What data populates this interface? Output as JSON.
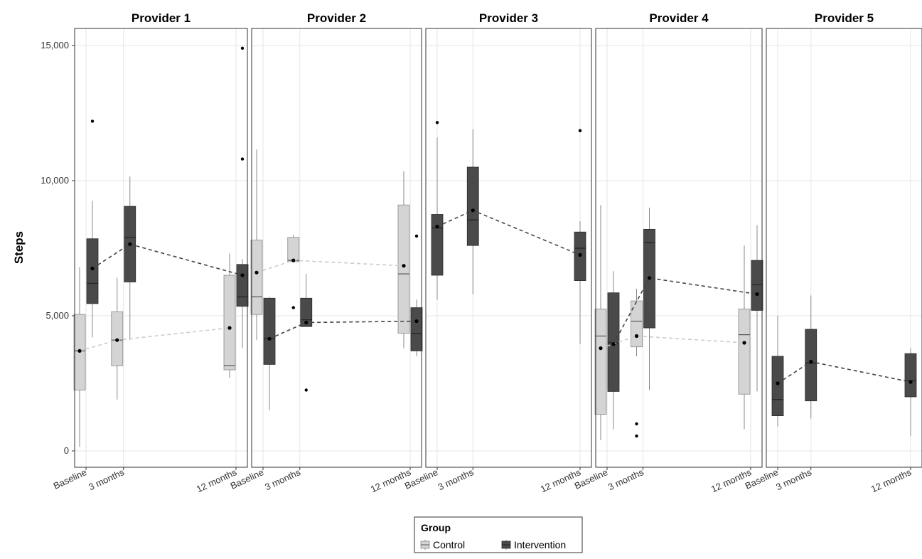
{
  "chart_data": {
    "type": "box",
    "ylabel": "Steps",
    "y_ticks": [
      "0",
      "5,000",
      "10,000",
      "15,000"
    ],
    "y_tick_values": [
      0,
      5000,
      10000,
      15000
    ],
    "ylim": [
      -500,
      15700
    ],
    "x_categories": [
      "Baseline",
      "3 months",
      "12 months"
    ],
    "x_positions": [
      0,
      3,
      12
    ],
    "legend": {
      "title": "Group",
      "position": "bottom",
      "entries": [
        {
          "name": "Control",
          "color": "#d4d4d4"
        },
        {
          "name": "Intervention",
          "color": "#4a4a4a"
        }
      ]
    },
    "colors": {
      "control": "#d4d4d4",
      "intervention": "#4a4a4a",
      "control_line": "#cccccc",
      "intervention_line": "#444444"
    },
    "panels": [
      {
        "title": "Provider 1",
        "boxes": [
          {
            "group": "Control",
            "time": "Baseline",
            "q1": 2250,
            "median": 3700,
            "q3": 5050,
            "whisker_low": 150,
            "whisker_high": 6800,
            "mean": 3700,
            "outliers": []
          },
          {
            "group": "Intervention",
            "time": "Baseline",
            "q1": 5450,
            "median": 6200,
            "q3": 7850,
            "whisker_low": 4200,
            "whisker_high": 9250,
            "mean": 6750,
            "outliers": [
              12200
            ]
          },
          {
            "group": "Control",
            "time": "3 months",
            "q1": 3150,
            "median": 4100,
            "q3": 5150,
            "whisker_low": 1900,
            "whisker_high": 6400,
            "mean": 4100,
            "outliers": []
          },
          {
            "group": "Intervention",
            "time": "3 months",
            "q1": 6250,
            "median": 7900,
            "q3": 9050,
            "whisker_low": 4100,
            "whisker_high": 10150,
            "mean": 7650,
            "outliers": []
          },
          {
            "group": "Control",
            "time": "12 months",
            "q1": 3000,
            "median": 3150,
            "q3": 6500,
            "whisker_low": 2700,
            "whisker_high": 7300,
            "mean": 4550,
            "outliers": []
          },
          {
            "group": "Intervention",
            "time": "12 months",
            "q1": 5350,
            "median": 5700,
            "q3": 6900,
            "whisker_low": 3800,
            "whisker_high": 7100,
            "mean": 6500,
            "outliers": [
              10800,
              14900
            ]
          }
        ],
        "control_means": [
          3700,
          4100,
          4550
        ],
        "intervention_means": [
          6750,
          7650,
          6500
        ]
      },
      {
        "title": "Provider 2",
        "boxes": [
          {
            "group": "Control",
            "time": "Baseline",
            "q1": 5050,
            "median": 5700,
            "q3": 7800,
            "whisker_low": 4100,
            "whisker_high": 11150,
            "mean": 6600,
            "outliers": []
          },
          {
            "group": "Intervention",
            "time": "Baseline",
            "q1": 3200,
            "median": 4150,
            "q3": 5650,
            "whisker_low": 1500,
            "whisker_high": 5700,
            "mean": 4150,
            "outliers": []
          },
          {
            "group": "Control",
            "time": "3 months",
            "q1": 7000,
            "median": 7050,
            "q3": 7900,
            "whisker_low": 7000,
            "whisker_high": 8000,
            "mean": 7050,
            "outliers": [
              5300
            ]
          },
          {
            "group": "Intervention",
            "time": "3 months",
            "q1": 4600,
            "median": 4850,
            "q3": 5650,
            "whisker_low": 4600,
            "whisker_high": 6550,
            "mean": 4750,
            "outliers": [
              2250
            ]
          },
          {
            "group": "Control",
            "time": "12 months",
            "q1": 4350,
            "median": 6550,
            "q3": 9100,
            "whisker_low": 3800,
            "whisker_high": 10350,
            "mean": 6850,
            "outliers": []
          },
          {
            "group": "Intervention",
            "time": "12 months",
            "q1": 3700,
            "median": 4350,
            "q3": 5300,
            "whisker_low": 3500,
            "whisker_high": 5600,
            "mean": 4800,
            "outliers": [
              7950
            ]
          }
        ],
        "control_means": [
          6600,
          7050,
          6850
        ],
        "intervention_means": [
          4150,
          4750,
          4800
        ]
      },
      {
        "title": "Provider 3",
        "boxes": [
          {
            "group": "Intervention",
            "time": "Baseline",
            "q1": 6500,
            "median": 8250,
            "q3": 8750,
            "whisker_low": 5600,
            "whisker_high": 11600,
            "mean": 8300,
            "outliers": [
              12150
            ]
          },
          {
            "group": "Intervention",
            "time": "3 months",
            "q1": 7600,
            "median": 8550,
            "q3": 10500,
            "whisker_low": 5800,
            "whisker_high": 11900,
            "mean": 8900,
            "outliers": []
          },
          {
            "group": "Intervention",
            "time": "12 months",
            "q1": 6300,
            "median": 7500,
            "q3": 8100,
            "whisker_low": 3950,
            "whisker_high": 8500,
            "mean": 7250,
            "outliers": [
              11850
            ]
          }
        ],
        "control_means": [],
        "intervention_means": [
          8300,
          8900,
          7250
        ]
      },
      {
        "title": "Provider 4",
        "boxes": [
          {
            "group": "Control",
            "time": "Baseline",
            "q1": 1350,
            "median": 4250,
            "q3": 5250,
            "whisker_low": 400,
            "whisker_high": 9100,
            "mean": 3800,
            "outliers": []
          },
          {
            "group": "Intervention",
            "time": "Baseline",
            "q1": 2200,
            "median": 4000,
            "q3": 5850,
            "whisker_low": 800,
            "whisker_high": 6650,
            "mean": 3950,
            "outliers": []
          },
          {
            "group": "Control",
            "time": "3 months",
            "q1": 3850,
            "median": 4800,
            "q3": 5550,
            "whisker_low": 3500,
            "whisker_high": 6000,
            "mean": 4250,
            "outliers": [
              1000,
              550
            ]
          },
          {
            "group": "Intervention",
            "time": "3 months",
            "q1": 4550,
            "median": 7700,
            "q3": 8200,
            "whisker_low": 2250,
            "whisker_high": 9000,
            "mean": 6400,
            "outliers": []
          },
          {
            "group": "Control",
            "time": "12 months",
            "q1": 2100,
            "median": 4300,
            "q3": 5250,
            "whisker_low": 800,
            "whisker_high": 7600,
            "mean": 4000,
            "outliers": []
          },
          {
            "group": "Intervention",
            "time": "12 months",
            "q1": 5200,
            "median": 6150,
            "q3": 7050,
            "whisker_low": 2200,
            "whisker_high": 8350,
            "mean": 5800,
            "outliers": []
          }
        ],
        "control_means": [
          3800,
          4250,
          4000
        ],
        "intervention_means": [
          3950,
          6400,
          5800
        ]
      },
      {
        "title": "Provider 5",
        "boxes": [
          {
            "group": "Intervention",
            "time": "Baseline",
            "q1": 1300,
            "median": 1900,
            "q3": 3500,
            "whisker_low": 900,
            "whisker_high": 5000,
            "mean": 2500,
            "outliers": []
          },
          {
            "group": "Intervention",
            "time": "3 months",
            "q1": 1850,
            "median": 3250,
            "q3": 4500,
            "whisker_low": 1200,
            "whisker_high": 5750,
            "mean": 3300,
            "outliers": []
          },
          {
            "group": "Intervention",
            "time": "12 months",
            "q1": 2000,
            "median": 2600,
            "q3": 3600,
            "whisker_low": 550,
            "whisker_high": 3800,
            "mean": 2550,
            "outliers": []
          }
        ],
        "control_means": [],
        "intervention_means": [
          2500,
          3300,
          2550
        ]
      }
    ]
  }
}
